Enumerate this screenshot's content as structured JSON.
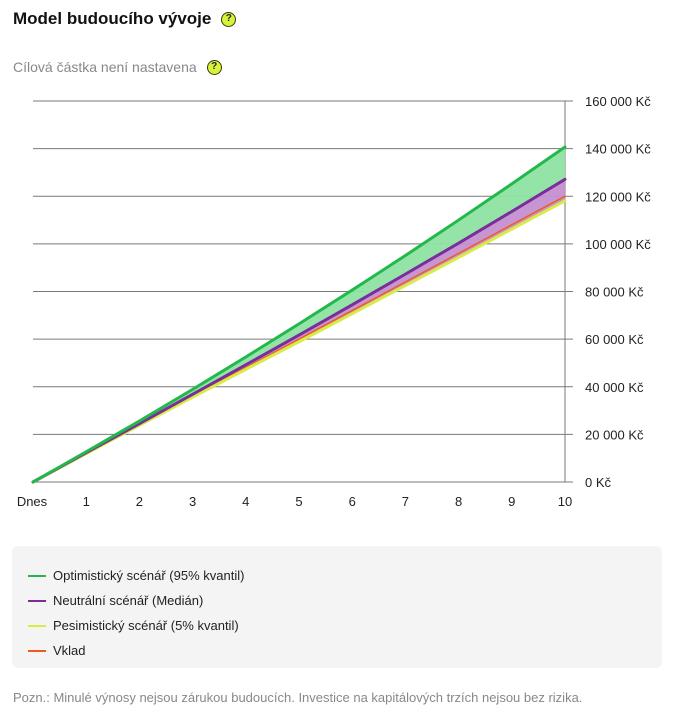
{
  "header": {
    "title": "Model budoucího vývoje",
    "help_glyph": "?"
  },
  "subtitle": {
    "text": "Cílová částka není nastavena",
    "help_glyph": "?"
  },
  "chart_data": {
    "type": "line",
    "title": "Model budoucího vývoje",
    "x": [
      0,
      1,
      2,
      3,
      4,
      5,
      6,
      7,
      8,
      9,
      10
    ],
    "x_tick_labels": [
      "Dnes",
      "1",
      "2",
      "3",
      "4",
      "5",
      "6",
      "7",
      "8",
      "9",
      "10"
    ],
    "y_tick_labels": [
      "0 Kč",
      "20 000 Kč",
      "40 000 Kč",
      "60 000 Kč",
      "80 000 Kč",
      "100 000 Kč",
      "120 000 Kč",
      "140 000 Kč",
      "160 000 Kč"
    ],
    "y_ticks": [
      0,
      20000,
      40000,
      60000,
      80000,
      100000,
      120000,
      140000,
      160000
    ],
    "ylim": [
      0,
      160000
    ],
    "xlim": [
      0,
      10
    ],
    "grid": true,
    "y_axis_side": "right",
    "series": [
      {
        "name": "Optimistický scénář (95% kvantil)",
        "color": "#22b84c",
        "values": [
          0,
          12700,
          25600,
          38900,
          52500,
          66400,
          80600,
          95100,
          110000,
          125200,
          140700
        ]
      },
      {
        "name": "Neutrální scénář (Medián)",
        "color": "#7b2d9a",
        "values": [
          0,
          12300,
          24500,
          36800,
          49200,
          61700,
          74400,
          87300,
          100300,
          113600,
          127100
        ]
      },
      {
        "name": "Pesimistický scénář (5% kvantil)",
        "color": "#d9ec45",
        "values": [
          0,
          11900,
          23800,
          35600,
          47300,
          58900,
          70700,
          82500,
          94300,
          106200,
          118100
        ]
      },
      {
        "name": "Vklad",
        "color": "#ef5a1f",
        "values": [
          0,
          12000,
          24000,
          36000,
          48000,
          60000,
          72000,
          84000,
          96000,
          108000,
          120000
        ]
      }
    ],
    "bands": [
      {
        "from": "Neutrální scénář (Medián)",
        "to": "Optimistický scénář (95% kvantil)",
        "color": "#8fe3a2"
      },
      {
        "from": "Pesimistický scénář (5% kvantil)",
        "to": "Neutrální scénář (Medián)",
        "color": "#c48fd0"
      }
    ]
  },
  "legend": {
    "items": [
      {
        "label": "Optimistický scénář (95% kvantil)",
        "color": "#22b84c"
      },
      {
        "label": "Neutrální scénář (Medián)",
        "color": "#7b2d9a"
      },
      {
        "label": "Pesimistický scénář (5% kvantil)",
        "color": "#d9ec45"
      },
      {
        "label": "Vklad",
        "color": "#ef5a1f"
      }
    ]
  },
  "footnote": "Pozn.: Minulé výnosy nejsou zárukou budoucích. Investice na kapitálových trzích nejsou bez rizika."
}
